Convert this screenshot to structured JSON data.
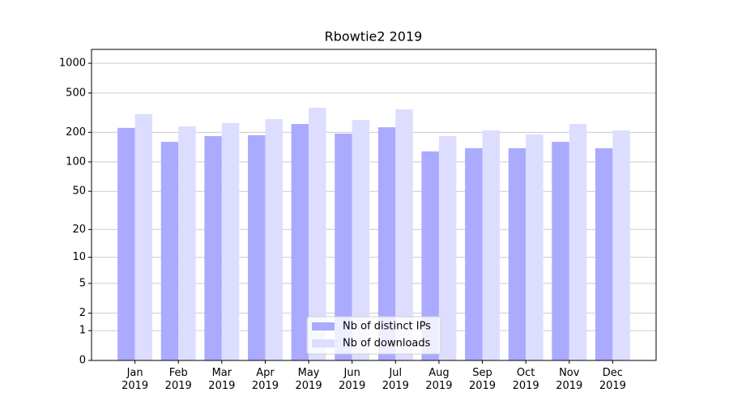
{
  "chart_data": {
    "type": "bar",
    "title": "Rbowtie2 2019",
    "categories": [
      "Jan\n2019",
      "Feb\n2019",
      "Mar\n2019",
      "Apr\n2019",
      "May\n2019",
      "Jun\n2019",
      "Jul\n2019",
      "Aug\n2019",
      "Sep\n2019",
      "Oct\n2019",
      "Nov\n2019",
      "Dec\n2019"
    ],
    "series": [
      {
        "name": "Nb of distinct IPs",
        "color": "#aaaaff",
        "values": [
          222,
          160,
          183,
          187,
          243,
          194,
          225,
          128,
          138,
          138,
          160,
          138
        ]
      },
      {
        "name": "Nb of downloads",
        "color": "#ddddff",
        "values": [
          305,
          230,
          248,
          272,
          355,
          267,
          342,
          183,
          209,
          190,
          243,
          209
        ]
      }
    ],
    "ylim": [
      0,
      1380
    ],
    "yticks": [
      0,
      1,
      2,
      5,
      10,
      20,
      50,
      100,
      200,
      500,
      1000
    ],
    "yscale": "log1p",
    "grid": true,
    "legend": "lower center"
  }
}
